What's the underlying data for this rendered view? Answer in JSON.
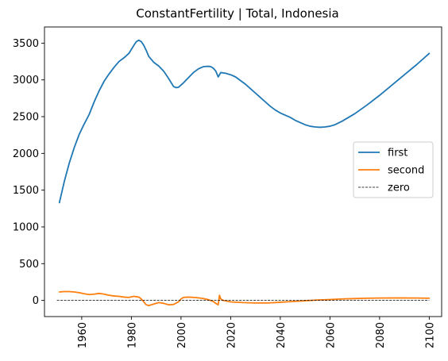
{
  "chart_data": {
    "type": "line",
    "title": "ConstantFertility | Total, Indonesia",
    "xlabel": "",
    "ylabel": "",
    "xlim": [
      1945,
      2105
    ],
    "ylim": [
      -220,
      3720
    ],
    "xticks": [
      1960,
      1980,
      2000,
      2020,
      2040,
      2060,
      2080,
      2100
    ],
    "yticks": [
      0,
      500,
      1000,
      1500,
      2000,
      2500,
      3000,
      3500
    ],
    "x_tick_rotation": 90,
    "grid": false,
    "legend_position": "center-right",
    "series": [
      {
        "name": "first",
        "color": "#1f77b4",
        "style": "solid",
        "points": [
          [
            1951,
            1330
          ],
          [
            1953,
            1620
          ],
          [
            1955,
            1870
          ],
          [
            1957,
            2080
          ],
          [
            1959,
            2260
          ],
          [
            1961,
            2400
          ],
          [
            1963,
            2530
          ],
          [
            1965,
            2700
          ],
          [
            1967,
            2850
          ],
          [
            1969,
            2980
          ],
          [
            1971,
            3080
          ],
          [
            1973,
            3170
          ],
          [
            1975,
            3250
          ],
          [
            1977,
            3300
          ],
          [
            1979,
            3360
          ],
          [
            1981,
            3470
          ],
          [
            1982,
            3520
          ],
          [
            1983,
            3540
          ],
          [
            1984,
            3520
          ],
          [
            1985,
            3470
          ],
          [
            1986,
            3400
          ],
          [
            1987,
            3320
          ],
          [
            1989,
            3240
          ],
          [
            1991,
            3190
          ],
          [
            1993,
            3120
          ],
          [
            1995,
            3020
          ],
          [
            1997,
            2910
          ],
          [
            1998,
            2895
          ],
          [
            1999,
            2900
          ],
          [
            2001,
            2960
          ],
          [
            2003,
            3030
          ],
          [
            2005,
            3100
          ],
          [
            2007,
            3150
          ],
          [
            2009,
            3180
          ],
          [
            2011,
            3185
          ],
          [
            2012,
            3180
          ],
          [
            2013,
            3160
          ],
          [
            2014,
            3120
          ],
          [
            2015,
            3040
          ],
          [
            2016,
            3100
          ],
          [
            2018,
            3090
          ],
          [
            2020,
            3070
          ],
          [
            2022,
            3040
          ],
          [
            2024,
            2990
          ],
          [
            2026,
            2940
          ],
          [
            2028,
            2880
          ],
          [
            2030,
            2820
          ],
          [
            2032,
            2760
          ],
          [
            2034,
            2700
          ],
          [
            2036,
            2640
          ],
          [
            2038,
            2590
          ],
          [
            2040,
            2550
          ],
          [
            2042,
            2520
          ],
          [
            2044,
            2490
          ],
          [
            2046,
            2450
          ],
          [
            2048,
            2420
          ],
          [
            2050,
            2390
          ],
          [
            2052,
            2370
          ],
          [
            2054,
            2360
          ],
          [
            2056,
            2355
          ],
          [
            2058,
            2360
          ],
          [
            2060,
            2370
          ],
          [
            2062,
            2390
          ],
          [
            2065,
            2440
          ],
          [
            2070,
            2540
          ],
          [
            2075,
            2660
          ],
          [
            2080,
            2790
          ],
          [
            2085,
            2930
          ],
          [
            2090,
            3070
          ],
          [
            2095,
            3210
          ],
          [
            2100,
            3360
          ]
        ]
      },
      {
        "name": "second",
        "color": "#ff7f0e",
        "style": "solid",
        "points": [
          [
            1951,
            115
          ],
          [
            1953,
            120
          ],
          [
            1955,
            120
          ],
          [
            1957,
            115
          ],
          [
            1959,
            105
          ],
          [
            1961,
            90
          ],
          [
            1963,
            80
          ],
          [
            1965,
            85
          ],
          [
            1967,
            95
          ],
          [
            1969,
            85
          ],
          [
            1971,
            70
          ],
          [
            1973,
            60
          ],
          [
            1975,
            55
          ],
          [
            1977,
            45
          ],
          [
            1979,
            40
          ],
          [
            1981,
            55
          ],
          [
            1983,
            45
          ],
          [
            1984,
            20
          ],
          [
            1985,
            -20
          ],
          [
            1986,
            -60
          ],
          [
            1987,
            -70
          ],
          [
            1989,
            -50
          ],
          [
            1991,
            -30
          ],
          [
            1993,
            -40
          ],
          [
            1995,
            -60
          ],
          [
            1997,
            -55
          ],
          [
            1999,
            -20
          ],
          [
            2000,
            20
          ],
          [
            2001,
            40
          ],
          [
            2003,
            45
          ],
          [
            2005,
            40
          ],
          [
            2007,
            35
          ],
          [
            2009,
            25
          ],
          [
            2011,
            10
          ],
          [
            2013,
            -15
          ],
          [
            2014,
            -40
          ],
          [
            2015,
            -60
          ],
          [
            2015.5,
            70
          ],
          [
            2016,
            20
          ],
          [
            2017,
            0
          ],
          [
            2020,
            -20
          ],
          [
            2025,
            -30
          ],
          [
            2030,
            -35
          ],
          [
            2035,
            -35
          ],
          [
            2040,
            -25
          ],
          [
            2045,
            -15
          ],
          [
            2050,
            -5
          ],
          [
            2055,
            5
          ],
          [
            2060,
            12
          ],
          [
            2065,
            20
          ],
          [
            2070,
            25
          ],
          [
            2075,
            30
          ],
          [
            2080,
            32
          ],
          [
            2085,
            33
          ],
          [
            2090,
            33
          ],
          [
            2095,
            32
          ],
          [
            2100,
            30
          ]
        ]
      },
      {
        "name": "zero",
        "color": "#000000",
        "style": "dashed",
        "points": [
          [
            1950,
            0
          ],
          [
            2100,
            0
          ]
        ]
      }
    ]
  }
}
